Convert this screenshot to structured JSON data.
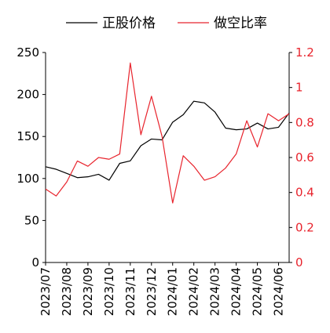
{
  "chart_data": {
    "type": "line",
    "title": "",
    "x": [
      "2023/07",
      "2023/07b",
      "2023/08",
      "2023/08b",
      "2023/09",
      "2023/09b",
      "2023/10",
      "2023/10b",
      "2023/11",
      "2023/11b",
      "2023/12",
      "2023/12b",
      "2024/01",
      "2024/01b",
      "2024/02",
      "2024/02b",
      "2024/03",
      "2024/03b",
      "2024/04",
      "2024/04b",
      "2024/05",
      "2024/05b",
      "2024/06",
      "2024/06b"
    ],
    "x_tick_labels": [
      "2023/07",
      "2023/08",
      "2023/09",
      "2023/10",
      "2023/11",
      "2023/12",
      "2024/01",
      "2024/02",
      "2024/03",
      "2024/04",
      "2024/05",
      "2024/06"
    ],
    "legend_position": "top",
    "grid": false,
    "y_left": {
      "ylim": [
        0,
        250
      ],
      "ticks": [
        "0",
        "50",
        "100",
        "150",
        "200",
        "250"
      ]
    },
    "y_right": {
      "ylim": [
        0,
        1.2
      ],
      "ticks": [
        "0",
        "0.2",
        "0.4",
        "0.6",
        "0.8",
        "1",
        "1.2"
      ],
      "color": "#e8242d"
    },
    "series": [
      {
        "name": "正股价格",
        "axis": "left",
        "color": "#000000",
        "values": [
          114,
          111,
          106,
          101,
          102,
          105,
          98,
          118,
          121,
          139,
          147,
          146,
          167,
          176,
          192,
          190,
          179,
          160,
          158,
          159,
          166,
          159,
          161,
          178
        ]
      },
      {
        "name": "做空比率",
        "axis": "right",
        "color": "#e8242d",
        "values": [
          0.42,
          0.38,
          0.46,
          0.58,
          0.55,
          0.6,
          0.59,
          0.62,
          1.14,
          0.73,
          0.95,
          0.72,
          0.34,
          0.61,
          0.55,
          0.47,
          0.49,
          0.54,
          0.62,
          0.81,
          0.66,
          0.85,
          0.81,
          0.85
        ]
      }
    ]
  }
}
